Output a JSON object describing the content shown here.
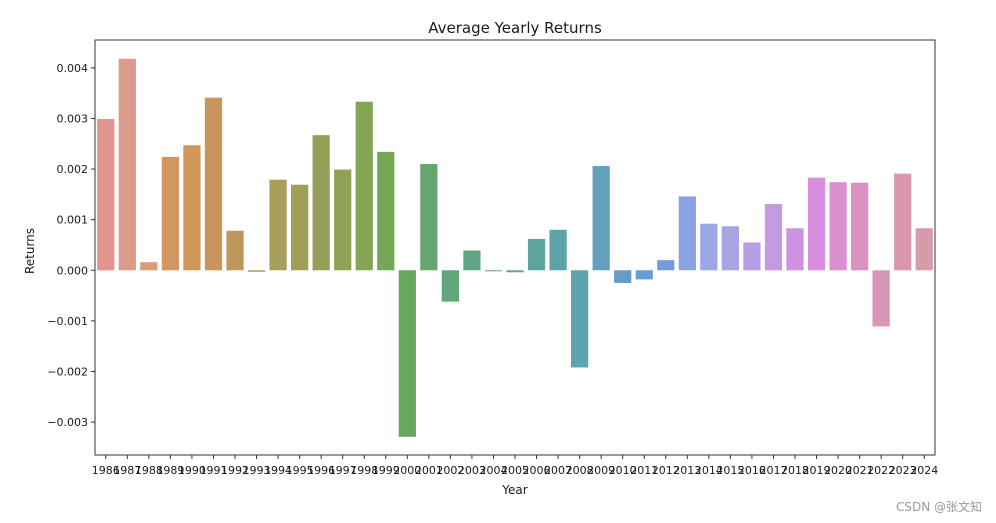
{
  "chart_data": {
    "type": "bar",
    "title": "Average Yearly Returns",
    "xlabel": "Year",
    "ylabel": "Returns",
    "ylim": [
      -0.00365,
      0.00455
    ],
    "yticks": [
      "0.004",
      "0.003",
      "0.002",
      "0.001",
      "0.000",
      "−0.001",
      "−0.002",
      "−0.003"
    ],
    "ytick_values": [
      0.004,
      0.003,
      0.002,
      0.001,
      0.0,
      -0.001,
      -0.002,
      -0.003
    ],
    "grid": false,
    "legend": "none",
    "categories": [
      "1986",
      "1987",
      "1988",
      "1989",
      "1990",
      "1991",
      "1992",
      "1993",
      "1994",
      "1995",
      "1996",
      "1997",
      "1998",
      "1999",
      "2000",
      "2001",
      "2002",
      "2003",
      "2004",
      "2005",
      "2006",
      "2007",
      "2008",
      "2009",
      "2010",
      "2011",
      "2012",
      "2013",
      "2014",
      "2015",
      "2016",
      "2017",
      "2018",
      "2019",
      "2020",
      "2021",
      "2022",
      "2023",
      "2024"
    ],
    "values": [
      0.00299,
      0.00418,
      0.00016,
      0.00224,
      0.00247,
      0.00341,
      0.00078,
      -3e-05,
      0.00179,
      0.00169,
      0.00267,
      0.00199,
      0.00333,
      0.00234,
      -0.00329,
      0.0021,
      -0.00062,
      0.00039,
      -2e-05,
      -4e-05,
      0.00062,
      0.0008,
      -0.00192,
      0.00206,
      -0.00025,
      -0.00018,
      0.0002,
      0.00146,
      0.00092,
      0.00087,
      0.00055,
      0.00131,
      0.00083,
      0.00183,
      0.00174,
      0.00173,
      -0.00111,
      0.00191,
      0.00083
    ],
    "colors": [
      "#e1938f",
      "#dd9b8c",
      "#d99d7c",
      "#d49660",
      "#d09657",
      "#c8965a",
      "#bd985a",
      "#b19a59",
      "#a79e59",
      "#9f9f58",
      "#969f57",
      "#8fa258",
      "#84a556",
      "#76a759",
      "#68a85e",
      "#65a76f",
      "#61a77b",
      "#60a685",
      "#5fa68e",
      "#5ea596",
      "#5da49f",
      "#5ca4a7",
      "#5ea3b0",
      "#62a0bb",
      "#659dc6",
      "#6c9cd3",
      "#7799dd",
      "#8aa2e2",
      "#9ba8e5",
      "#a7a4e4",
      "#b69fe4",
      "#c39be2",
      "#cd93df",
      "#d88ede",
      "#db8fcf",
      "#db90c2",
      "#d997b8",
      "#d998b0",
      "#d69aa8"
    ]
  },
  "watermark": "CSDN @张文知"
}
